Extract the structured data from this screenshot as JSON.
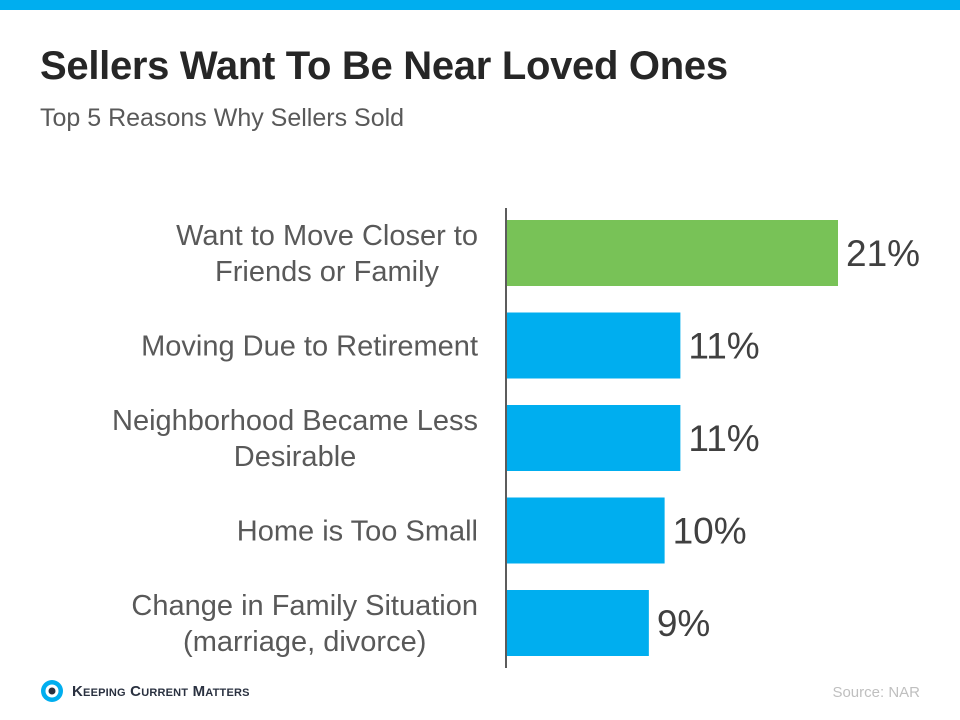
{
  "title": "Sellers Want To Be Near Loved Ones",
  "subtitle": "Top 5 Reasons Why Sellers Sold",
  "source": "Source: NAR",
  "logo_text": "Keeping Current Matters",
  "colors": {
    "accent": "#00aeef",
    "highlight": "#78c257",
    "bar": "#00aeef"
  },
  "chart_data": {
    "type": "bar",
    "orientation": "horizontal",
    "title": "Sellers Want To Be Near Loved Ones",
    "subtitle": "Top 5 Reasons Why Sellers Sold",
    "categories": [
      [
        "Want to Move Closer to",
        "Friends or Family"
      ],
      [
        "Moving Due to Retirement"
      ],
      [
        "Neighborhood Became Less",
        "Desirable"
      ],
      [
        "Home is Too Small"
      ],
      [
        "Change in Family Situation",
        "(marriage, divorce)"
      ]
    ],
    "values": [
      21,
      11,
      11,
      10,
      9
    ],
    "data_labels": [
      "21%",
      "11%",
      "11%",
      "10%",
      "9%"
    ],
    "highlight_index": 0,
    "unit": "%",
    "xlim": [
      0,
      25
    ],
    "grid": false
  }
}
